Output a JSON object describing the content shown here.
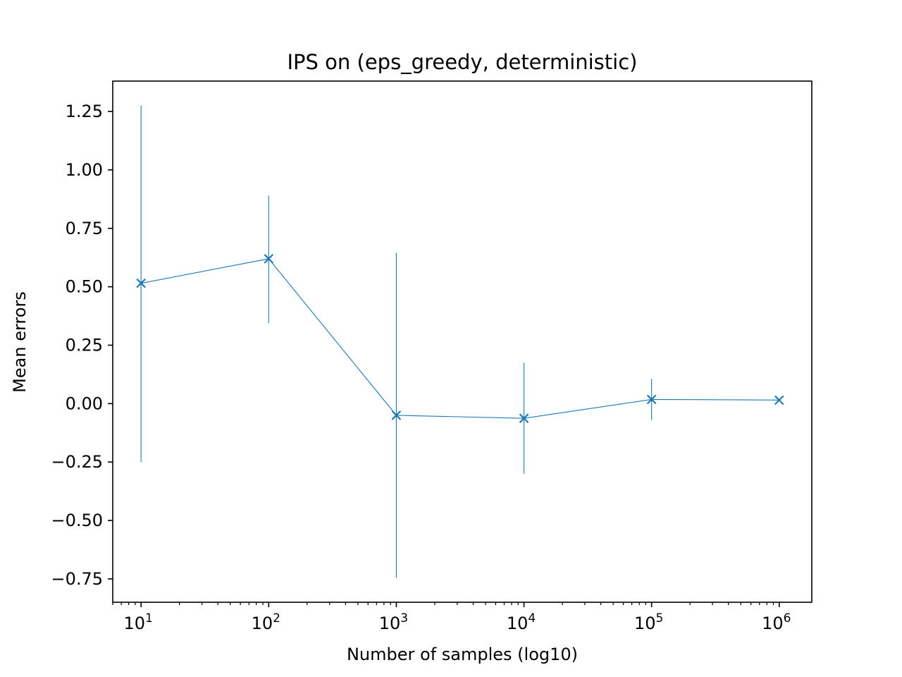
{
  "chart_data": {
    "type": "line",
    "title": "IPS on (eps_greedy, deterministic)",
    "xlabel": "Number of samples (log10)",
    "ylabel": "Mean errors",
    "x_scale": "log",
    "xlim": [
      6,
      1800000
    ],
    "ylim": [
      -0.85,
      1.38
    ],
    "grid": false,
    "x_ticks": [
      {
        "value": 10,
        "base": "10",
        "exp": "1"
      },
      {
        "value": 100,
        "base": "10",
        "exp": "2"
      },
      {
        "value": 1000,
        "base": "10",
        "exp": "3"
      },
      {
        "value": 10000,
        "base": "10",
        "exp": "4"
      },
      {
        "value": 100000,
        "base": "10",
        "exp": "5"
      },
      {
        "value": 1000000,
        "base": "10",
        "exp": "6"
      }
    ],
    "y_ticks": [
      {
        "value": 1.25,
        "label": "1.25"
      },
      {
        "value": 1.0,
        "label": "1.00"
      },
      {
        "value": 0.75,
        "label": "0.75"
      },
      {
        "value": 0.5,
        "label": "0.50"
      },
      {
        "value": 0.25,
        "label": "0.25"
      },
      {
        "value": 0.0,
        "label": "0.00"
      },
      {
        "value": -0.25,
        "label": "−0.25"
      },
      {
        "value": -0.5,
        "label": "−0.50"
      },
      {
        "value": -0.75,
        "label": "−0.75"
      }
    ],
    "series": [
      {
        "color": "#1f77b4",
        "marker": "x",
        "x": [
          10,
          100,
          1000,
          10000,
          100000,
          1000000
        ],
        "y": [
          0.515,
          0.62,
          -0.05,
          -0.063,
          0.018,
          0.015
        ],
        "y_err_low": [
          -0.25,
          0.345,
          -0.745,
          -0.3,
          -0.07,
          0.01
        ],
        "y_err_high": [
          1.275,
          0.89,
          0.645,
          0.175,
          0.105,
          0.02
        ]
      }
    ]
  }
}
